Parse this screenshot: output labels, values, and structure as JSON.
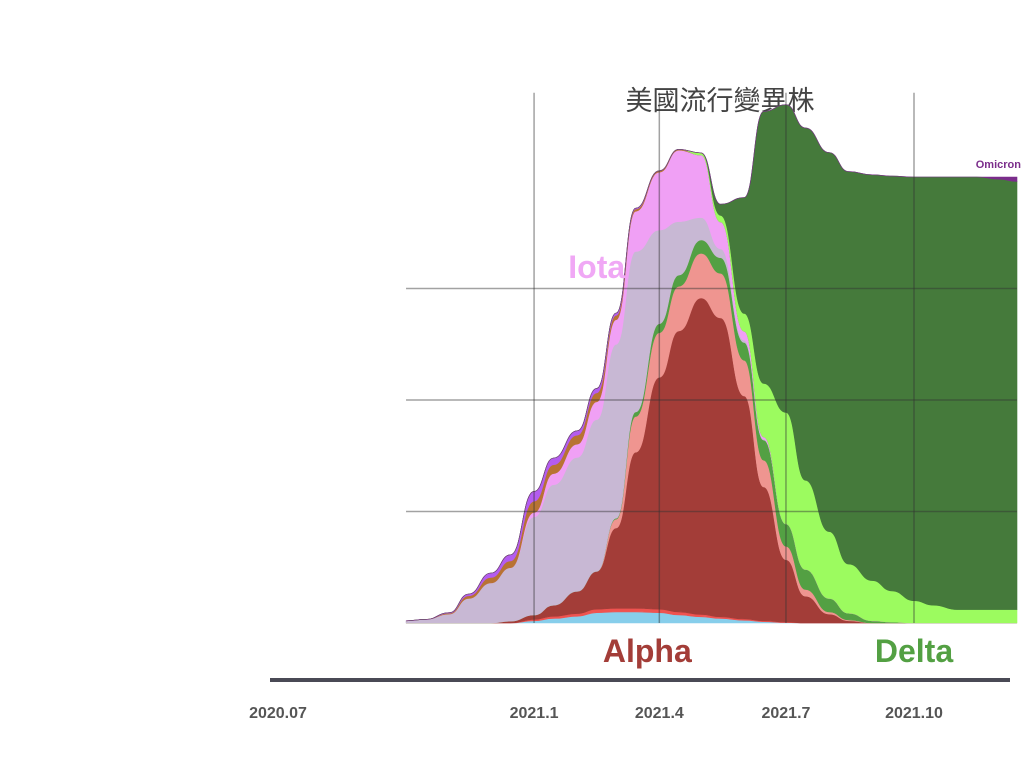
{
  "chart_data": {
    "type": "area",
    "stacked": true,
    "title": "美國流行變異株",
    "x_tick_labels": [
      "2020.07",
      "2021.1",
      "2021.4",
      "2021.7",
      "2021.10"
    ],
    "x_ticks": [
      "2020-07-01",
      "2021-01-01",
      "2021-04-01",
      "2021-07-01",
      "2021-10-01"
    ],
    "x": [
      "2020-10-01",
      "2020-10-15",
      "2020-11-01",
      "2020-11-15",
      "2020-12-01",
      "2020-12-15",
      "2021-01-01",
      "2021-01-15",
      "2021-02-01",
      "2021-02-15",
      "2021-03-01",
      "2021-03-15",
      "2021-04-01",
      "2021-04-15",
      "2021-05-01",
      "2021-05-15",
      "2021-06-01",
      "2021-06-15",
      "2021-07-01",
      "2021-07-15",
      "2021-08-01",
      "2021-08-15",
      "2021-09-01",
      "2021-09-15",
      "2021-10-01",
      "2021-10-15",
      "2021-11-01",
      "2021-11-15",
      "2021-12-01",
      "2021-12-14"
    ],
    "series": [
      {
        "key": "blue",
        "color": "#87ceeb",
        "values": [
          0,
          0,
          0,
          0,
          0,
          0,
          0.5,
          1.0,
          1.5,
          2.3,
          2.5,
          2.5,
          2.3,
          1.8,
          1.4,
          1.0,
          0.6,
          0.3,
          0.1,
          0,
          0,
          0,
          0,
          0,
          0,
          0,
          0,
          0,
          0,
          0
        ]
      },
      {
        "key": "red",
        "color": "#ef5350",
        "values": [
          0,
          0,
          0,
          0,
          0,
          0,
          0.3,
          0.5,
          0.6,
          0.8,
          0.8,
          0.8,
          0.8,
          0.7,
          0.5,
          0.4,
          0.3,
          0.2,
          0.1,
          0,
          0,
          0,
          0,
          0,
          0,
          0,
          0,
          0,
          0,
          0
        ]
      },
      {
        "key": "alpha",
        "color": "#a33d38",
        "name": "Alpha",
        "values": [
          0,
          0,
          0,
          0,
          0,
          0.4,
          1.0,
          2.5,
          5.0,
          8.5,
          18.0,
          35.0,
          52.0,
          63.0,
          71.0,
          67.0,
          50.0,
          30.0,
          14.0,
          6.0,
          2.0,
          0.5,
          0,
          0,
          0,
          0,
          0,
          0,
          0,
          0
        ]
      },
      {
        "key": "pink",
        "color": "#ef9590",
        "values": [
          0,
          0,
          0,
          0,
          0,
          0,
          0,
          0,
          0,
          0,
          2.0,
          8.0,
          10.0,
          10.0,
          10.0,
          10.0,
          8.0,
          6.0,
          3.0,
          1.5,
          0.5,
          0.2,
          0,
          0,
          0,
          0,
          0,
          0,
          0,
          0
        ]
      },
      {
        "key": "gamma",
        "color": "#53a043",
        "values": [
          0,
          0,
          0,
          0,
          0,
          0,
          0,
          0,
          0,
          0,
          0.2,
          1.0,
          2.0,
          2.5,
          3.0,
          3.5,
          4.0,
          4.5,
          5.0,
          4.5,
          3.0,
          1.5,
          0.5,
          0.2,
          0,
          0,
          0,
          0,
          0,
          0
        ]
      },
      {
        "key": "lilac",
        "color": "#c8b8d4",
        "values": [
          0.5,
          0.8,
          2.0,
          5.5,
          9.0,
          12.0,
          22.0,
          27.0,
          30.0,
          34.0,
          39.0,
          36.0,
          21.0,
          12.0,
          5.0,
          2.0,
          0.5,
          0.2,
          0,
          0,
          0,
          0,
          0,
          0,
          0,
          0,
          0,
          0,
          0,
          0
        ]
      },
      {
        "key": "iota",
        "color": "#f0a0f5",
        "name": "Iota",
        "values": [
          0,
          0,
          0,
          0,
          0,
          0,
          1.0,
          2.5,
          3.0,
          4.0,
          5.5,
          9.0,
          13.0,
          16.0,
          14.0,
          6.0,
          2.0,
          0.5,
          0,
          0,
          0,
          0,
          0,
          0,
          0,
          0,
          0,
          0,
          0,
          0
        ]
      },
      {
        "key": "orange",
        "color": "#b87333",
        "values": [
          0,
          0,
          0.2,
          0.6,
          1.2,
          1.5,
          2.5,
          2.0,
          2.0,
          2.0,
          1.0,
          0.5,
          0.3,
          0.2,
          0,
          0,
          0,
          0,
          0,
          0,
          0,
          0,
          0,
          0,
          0,
          0,
          0,
          0,
          0,
          0
        ]
      },
      {
        "key": "violet",
        "color": "#b45cf0",
        "values": [
          0,
          0,
          0.1,
          0.4,
          1.0,
          1.4,
          2.2,
          1.5,
          1.0,
          1.0,
          0.5,
          0.2,
          0,
          0,
          0,
          0,
          0,
          0,
          0,
          0,
          0,
          0,
          0,
          0,
          0,
          0,
          0,
          0,
          0,
          0
        ]
      },
      {
        "key": "lime",
        "color": "#9cfb5f",
        "values": [
          0,
          0,
          0,
          0,
          0,
          0,
          0,
          0,
          0,
          0,
          0,
          0,
          0,
          0,
          0.5,
          1.5,
          4.0,
          12.0,
          25.0,
          20.0,
          15.0,
          11.0,
          9.0,
          7.0,
          5.0,
          4.0,
          3.0,
          3.0,
          3.0,
          3.0
        ]
      },
      {
        "key": "delta",
        "color": "#457a3b",
        "name": "Delta",
        "values": [
          0,
          0,
          0,
          0,
          0,
          0,
          0,
          0,
          0,
          0,
          0,
          0,
          0,
          0,
          0,
          2.5,
          26.0,
          61.0,
          69.0,
          79.0,
          85.0,
          88.0,
          91.0,
          93.0,
          95.0,
          96.0,
          97.0,
          97.0,
          96.5,
          96.0
        ]
      },
      {
        "key": "omicron",
        "color": "#7b2d8b",
        "name": "Omicron",
        "values": [
          0,
          0,
          0,
          0,
          0,
          0,
          0,
          0,
          0,
          0,
          0,
          0,
          0,
          0,
          0,
          0,
          0,
          0,
          0,
          0,
          0,
          0,
          0,
          0,
          0,
          0,
          0,
          0,
          0.5,
          1.0
        ]
      }
    ],
    "labels": [
      {
        "text": "Iota",
        "color": "#f0a8f5",
        "anchor_date": "2021-02-15"
      },
      {
        "text": "Alpha",
        "color": "#a33d38",
        "anchor_date": "2021-04-01"
      },
      {
        "text": "Delta",
        "color": "#53a043",
        "anchor_date": "2021-10-01"
      },
      {
        "text": "Omicron",
        "color": "#7b2d8b",
        "anchor_date": "2021-12-14"
      }
    ],
    "grid": true,
    "grid_color": "#333333"
  }
}
